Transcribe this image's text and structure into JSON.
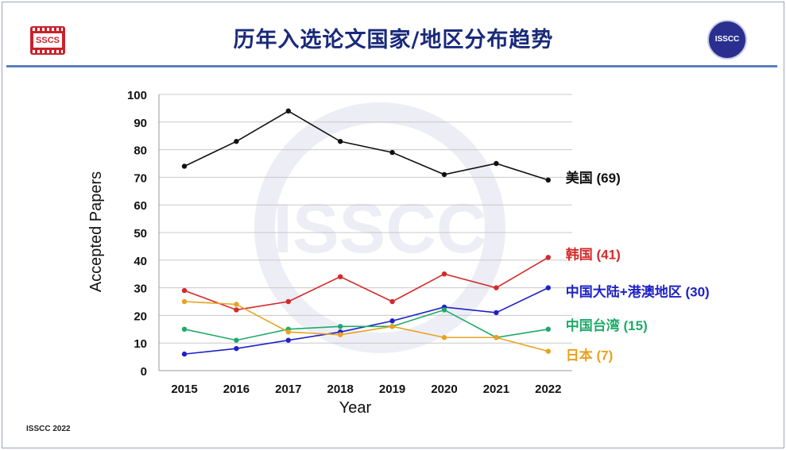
{
  "slide": {
    "title": "历年入选论文国家/地区分布趋势",
    "footer": "ISSCC 2022",
    "logo_left_text": "SSCS",
    "logo_right_text": "ISSCC",
    "watermark_text": "ISSCC"
  },
  "colors": {
    "title": "#1a2a7a",
    "rule": "#5a7fc0",
    "usa": "#111111",
    "korea": "#d42a2a",
    "china_mainland": "#1f22c4",
    "taiwan": "#1faa6a",
    "japan": "#e8a220"
  },
  "chart_data": {
    "type": "line",
    "xlabel": "Year",
    "ylabel": "Accepted Papers",
    "ylim": [
      0,
      100
    ],
    "yticks": [
      0,
      10,
      20,
      30,
      40,
      50,
      60,
      70,
      80,
      90,
      100
    ],
    "categories": [
      "2015",
      "2016",
      "2017",
      "2018",
      "2019",
      "2020",
      "2021",
      "2022"
    ],
    "grid": "horizontal",
    "legend": "end-of-line labels (right)",
    "series": [
      {
        "key": "usa",
        "name": "美国 (69)",
        "color": "#111111",
        "values": [
          74,
          83,
          94,
          83,
          79,
          71,
          75,
          69
        ]
      },
      {
        "key": "korea",
        "name": "韩国 (41)",
        "color": "#d42a2a",
        "values": [
          29,
          22,
          25,
          34,
          25,
          35,
          30,
          41
        ]
      },
      {
        "key": "china_mainland",
        "name": "中国大陆+港澳地区 (30)",
        "color": "#1f22c4",
        "values": [
          6,
          8,
          11,
          14,
          18,
          23,
          21,
          30
        ]
      },
      {
        "key": "taiwan",
        "name": "中国台湾 (15)",
        "color": "#1faa6a",
        "values": [
          15,
          11,
          15,
          16,
          16,
          22,
          12,
          15
        ]
      },
      {
        "key": "japan",
        "name": "日本 (7)",
        "color": "#e8a220",
        "values": [
          25,
          24,
          14,
          13,
          16,
          12,
          12,
          7
        ]
      }
    ]
  }
}
